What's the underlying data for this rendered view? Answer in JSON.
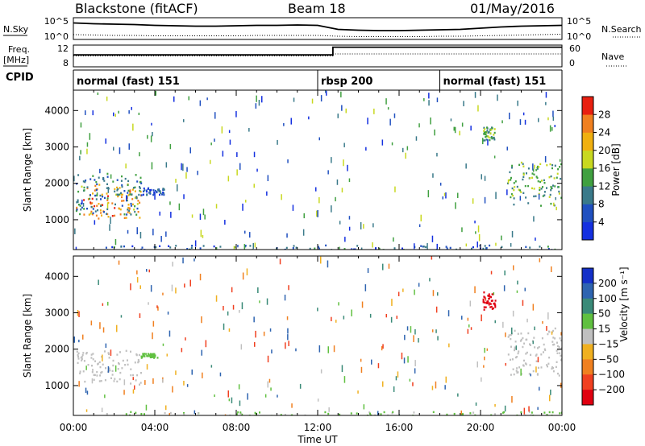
{
  "header": {
    "radar": "Blackstone (fitACF)",
    "beam": "Beam 18",
    "date": "01/May/2016"
  },
  "chart_data": [
    {
      "type": "line",
      "panel": "noise",
      "left_label": "N.Sky",
      "right_label": "N.Search",
      "left_ticks": [
        "10^5",
        "10^0"
      ],
      "right_ticks": [
        "10^5",
        "10^0"
      ],
      "series": [
        {
          "values": [
            3.9,
            3.7,
            3.6,
            3.5,
            3.3,
            3.2,
            3.1,
            3.1,
            3.2,
            3.3,
            3.3,
            3.4,
            3.3,
            2.3,
            2.1,
            2.0,
            2.0,
            2.1,
            2.2,
            2.3,
            2.6,
            2.9,
            3.1,
            3.2,
            3.3
          ]
        },
        {
          "values": [
            1.0,
            0.9,
            0.8,
            0.8,
            0.7,
            0.7,
            0.7,
            0.7,
            0.7,
            0.8,
            0.8,
            0.8,
            0.8,
            0.6,
            0.5,
            0.5,
            0.5,
            0.5,
            0.6,
            0.6,
            0.7,
            0.8,
            0.9,
            1.0,
            1.1
          ]
        }
      ]
    },
    {
      "type": "line",
      "panel": "frequency",
      "left_label": "Freq.",
      "left_unit": "[MHz]",
      "right_label": "Nave",
      "left_ticks": [
        "12",
        "8"
      ],
      "right_ticks": [
        "60",
        "0"
      ],
      "x": [
        0,
        12.75,
        12.75,
        24
      ],
      "series": [
        {
          "values": [
            10.3,
            10.3,
            11.9,
            11.9
          ]
        },
        {
          "values": [
            10.1,
            10.1,
            10.5,
            10.5
          ]
        }
      ]
    },
    {
      "type": "table",
      "panel": "cpid",
      "label": "CPID",
      "segments": [
        {
          "start": 0,
          "end": 12,
          "label": "normal (fast) 151"
        },
        {
          "start": 12,
          "end": 18,
          "label": "rbsp 200"
        },
        {
          "start": 18,
          "end": 24,
          "label": "normal (fast) 151"
        }
      ]
    },
    {
      "type": "heatmap",
      "panel": "power",
      "ylabel": "Slant Range [km]",
      "ylim": [
        180,
        4560
      ],
      "xlim": [
        0,
        24
      ],
      "y_ticks": [
        "1000",
        "2000",
        "3000",
        "4000"
      ],
      "colorbar": {
        "label": "Power [dB]",
        "ticks": [
          "4",
          "8",
          "12",
          "16",
          "20",
          "24",
          "28"
        ],
        "colors": [
          "#1430e0",
          "#2050c0",
          "#3a7a8a",
          "#40a040",
          "#c8d820",
          "#f0b010",
          "#f08020",
          "#e82010"
        ]
      },
      "features": [
        {
          "x_start": 0.1,
          "x_end": 3.3,
          "range_start": 1050,
          "range_end": 2000,
          "value": 24
        },
        {
          "x_start": 0.1,
          "x_end": 3.3,
          "range_start": 1150,
          "range_end": 2300,
          "value": 10
        },
        {
          "x_start": 3.3,
          "x_end": 4.5,
          "range_start": 1700,
          "range_end": 1900,
          "value": 6
        },
        {
          "x_start": 20.1,
          "x_end": 20.7,
          "range_start": 3200,
          "range_end": 3600,
          "value": 14
        },
        {
          "x_start": 21.3,
          "x_end": 24.0,
          "range_start": 1400,
          "range_end": 2600,
          "value": 14
        },
        {
          "x_start": 1.5,
          "x_end": 24.0,
          "range_start": 190,
          "range_end": 320,
          "value": 8
        }
      ]
    },
    {
      "type": "heatmap",
      "panel": "velocity",
      "ylabel": "Slant Range [km]",
      "ylim": [
        180,
        4560
      ],
      "xlim": [
        0,
        24
      ],
      "y_ticks": [
        "1000",
        "2000",
        "3000",
        "4000"
      ],
      "x_ticks": [
        "00:00",
        "04:00",
        "08:00",
        "12:00",
        "16:00",
        "20:00",
        "00:00"
      ],
      "xlabel": "Time UT",
      "colorbar": {
        "label": "Velocity [m s⁻¹]",
        "ticks": [
          "200",
          "100",
          "50",
          "15",
          "−15",
          "−50",
          "−100",
          "−200"
        ],
        "colors": [
          "#1430c8",
          "#2e64b0",
          "#3a8a78",
          "#60c040",
          "#c0c0c0",
          "#f0b020",
          "#f08020",
          "#f04020",
          "#e00010"
        ]
      },
      "features": [
        {
          "x_start": 0.1,
          "x_end": 3.3,
          "range_start": 1050,
          "range_end": 2000,
          "value": 0
        },
        {
          "x_start": 3.3,
          "x_end": 4.1,
          "range_start": 1770,
          "range_end": 1900,
          "value": 30
        },
        {
          "x_start": 20.1,
          "x_end": 20.7,
          "range_start": 3100,
          "range_end": 3600,
          "value": -250
        },
        {
          "x_start": 21.3,
          "x_end": 24.0,
          "range_start": 1300,
          "range_end": 2600,
          "value": 0
        },
        {
          "x_start": 1.5,
          "x_end": 24.0,
          "range_start": 190,
          "range_end": 300,
          "value": 20
        }
      ]
    }
  ]
}
